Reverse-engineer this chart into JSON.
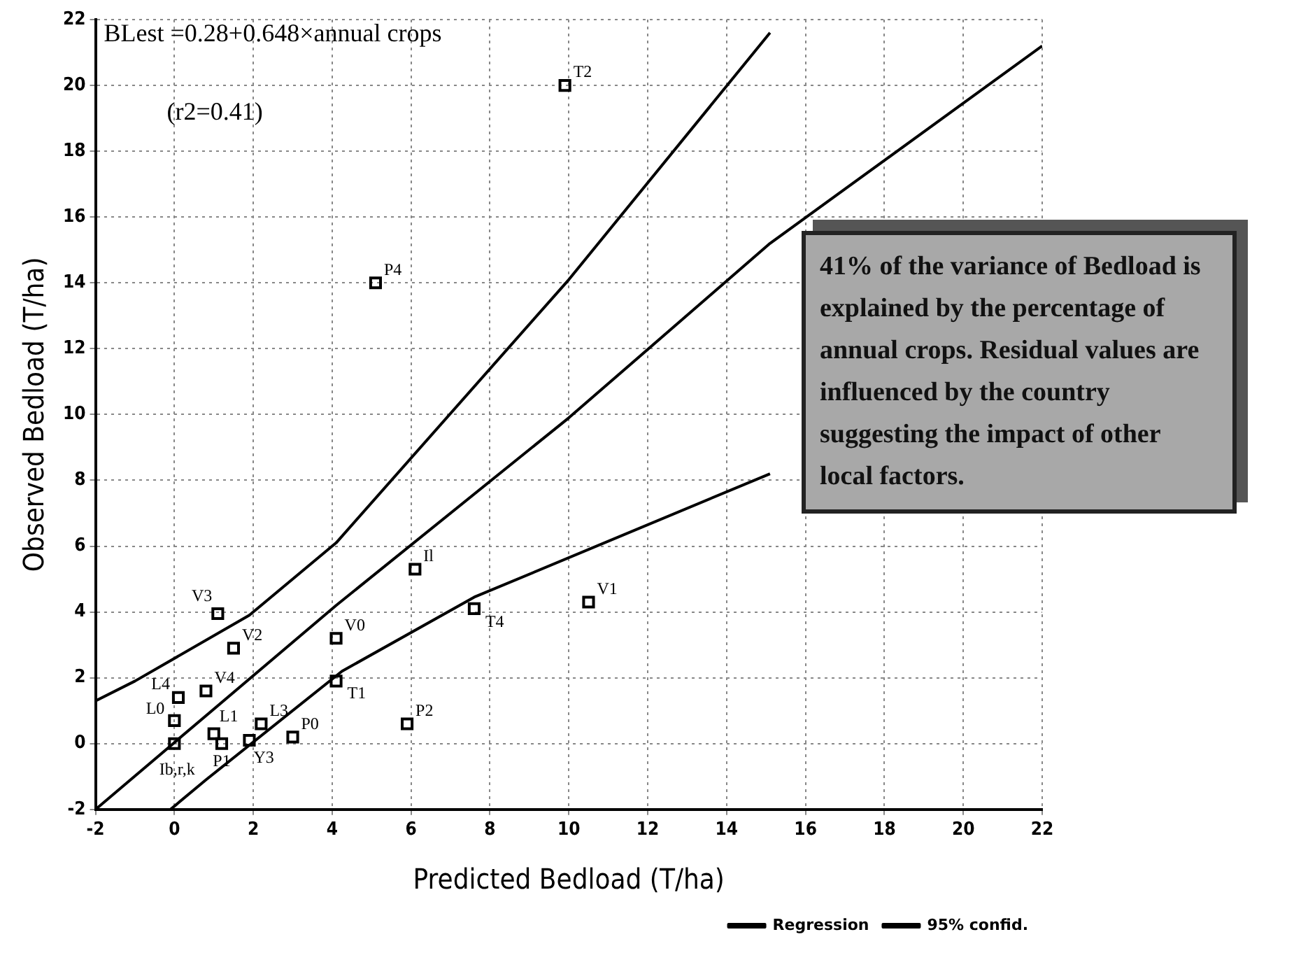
{
  "chart_data": {
    "type": "scatter",
    "xlabel": "Predicted Bedload (T/ha)",
    "ylabel": "Observed Bedload (T/ha)",
    "xlim": [
      -2,
      22
    ],
    "ylim": [
      -2,
      22
    ],
    "xticks": [
      -2,
      0,
      2,
      4,
      6,
      8,
      10,
      12,
      14,
      16,
      18,
      20,
      22
    ],
    "yticks": [
      -2,
      0,
      2,
      4,
      6,
      8,
      10,
      12,
      14,
      16,
      18,
      20,
      22
    ],
    "grid": true,
    "legend": "bottom right",
    "series": [
      {
        "marker": "square",
        "color": "#000000",
        "x": [
          9.9,
          5.1,
          6.1,
          7.6,
          10.5,
          1.1,
          1.5,
          4.1,
          4.1,
          0.1,
          0.8,
          0,
          0,
          1.0,
          1.2,
          1.9,
          2.2,
          3.0,
          5.9
        ],
        "values": [
          20.0,
          14.0,
          5.3,
          4.1,
          4.3,
          3.95,
          2.9,
          3.2,
          1.9,
          1.4,
          1.6,
          0.7,
          0,
          0.3,
          0,
          0.1,
          0.6,
          0.2,
          0.6
        ]
      },
      {
        "type": "line",
        "name": "Regression",
        "color": "#000000",
        "x": [
          -2,
          4.1,
          10,
          15.1,
          22
        ],
        "values": [
          -2,
          4.2,
          9.9,
          15.2,
          21.2
        ]
      },
      {
        "type": "line",
        "name": "95% confid.",
        "color": "#000000",
        "x": [
          -2,
          -1,
          1.9,
          4.1,
          10,
          15.1
        ],
        "values": [
          1.3,
          1.9,
          3.9,
          6.1,
          14.1,
          21.6
        ]
      },
      {
        "type": "line",
        "color": "#000000",
        "x": [
          -0.1,
          0.8,
          4.25,
          7.6,
          15.1
        ],
        "values": [
          -2,
          -1.1,
          2.2,
          4.45,
          8.2
        ]
      }
    ],
    "annotations": [
      "BLest =0.28+0.648×annual crops",
      "(r2=0.41)",
      "41% of the variance of Bedload is explained by the percentage of annual crops. Residual values are influenced by the country suggesting the impact of other local factors.",
      {
        "text": "T2",
        "x": 9.9,
        "y": 20.0
      },
      {
        "text": "P4",
        "x": 5.1,
        "y": 14.0
      },
      {
        "text": "Il",
        "x": 6.1,
        "y": 5.3
      },
      {
        "text": "T4",
        "x": 7.6,
        "y": 4.1
      },
      {
        "text": "V1",
        "x": 10.5,
        "y": 4.3
      },
      {
        "text": "V3",
        "x": 1.1,
        "y": 3.95
      },
      {
        "text": "V2",
        "x": 1.5,
        "y": 2.9
      },
      {
        "text": "V0",
        "x": 4.1,
        "y": 3.2
      },
      {
        "text": "T1",
        "x": 4.1,
        "y": 1.9
      },
      {
        "text": "L4",
        "x": 0.1,
        "y": 1.4
      },
      {
        "text": "V4",
        "x": 0.8,
        "y": 1.6
      },
      {
        "text": "L0",
        "x": 0,
        "y": 0.7
      },
      {
        "text": "Ib,r,k",
        "x": 0,
        "y": 0
      },
      {
        "text": "L1",
        "x": 1.0,
        "y": 0.3
      },
      {
        "text": "P1",
        "x": 1.2,
        "y": 0
      },
      {
        "text": "Y3",
        "x": 1.9,
        "y": 0.1
      },
      {
        "text": "L3",
        "x": 2.2,
        "y": 0.6
      },
      {
        "text": "P0",
        "x": 3.0,
        "y": 0.2
      },
      {
        "text": "P2",
        "x": 5.9,
        "y": 0.6
      }
    ]
  }
}
